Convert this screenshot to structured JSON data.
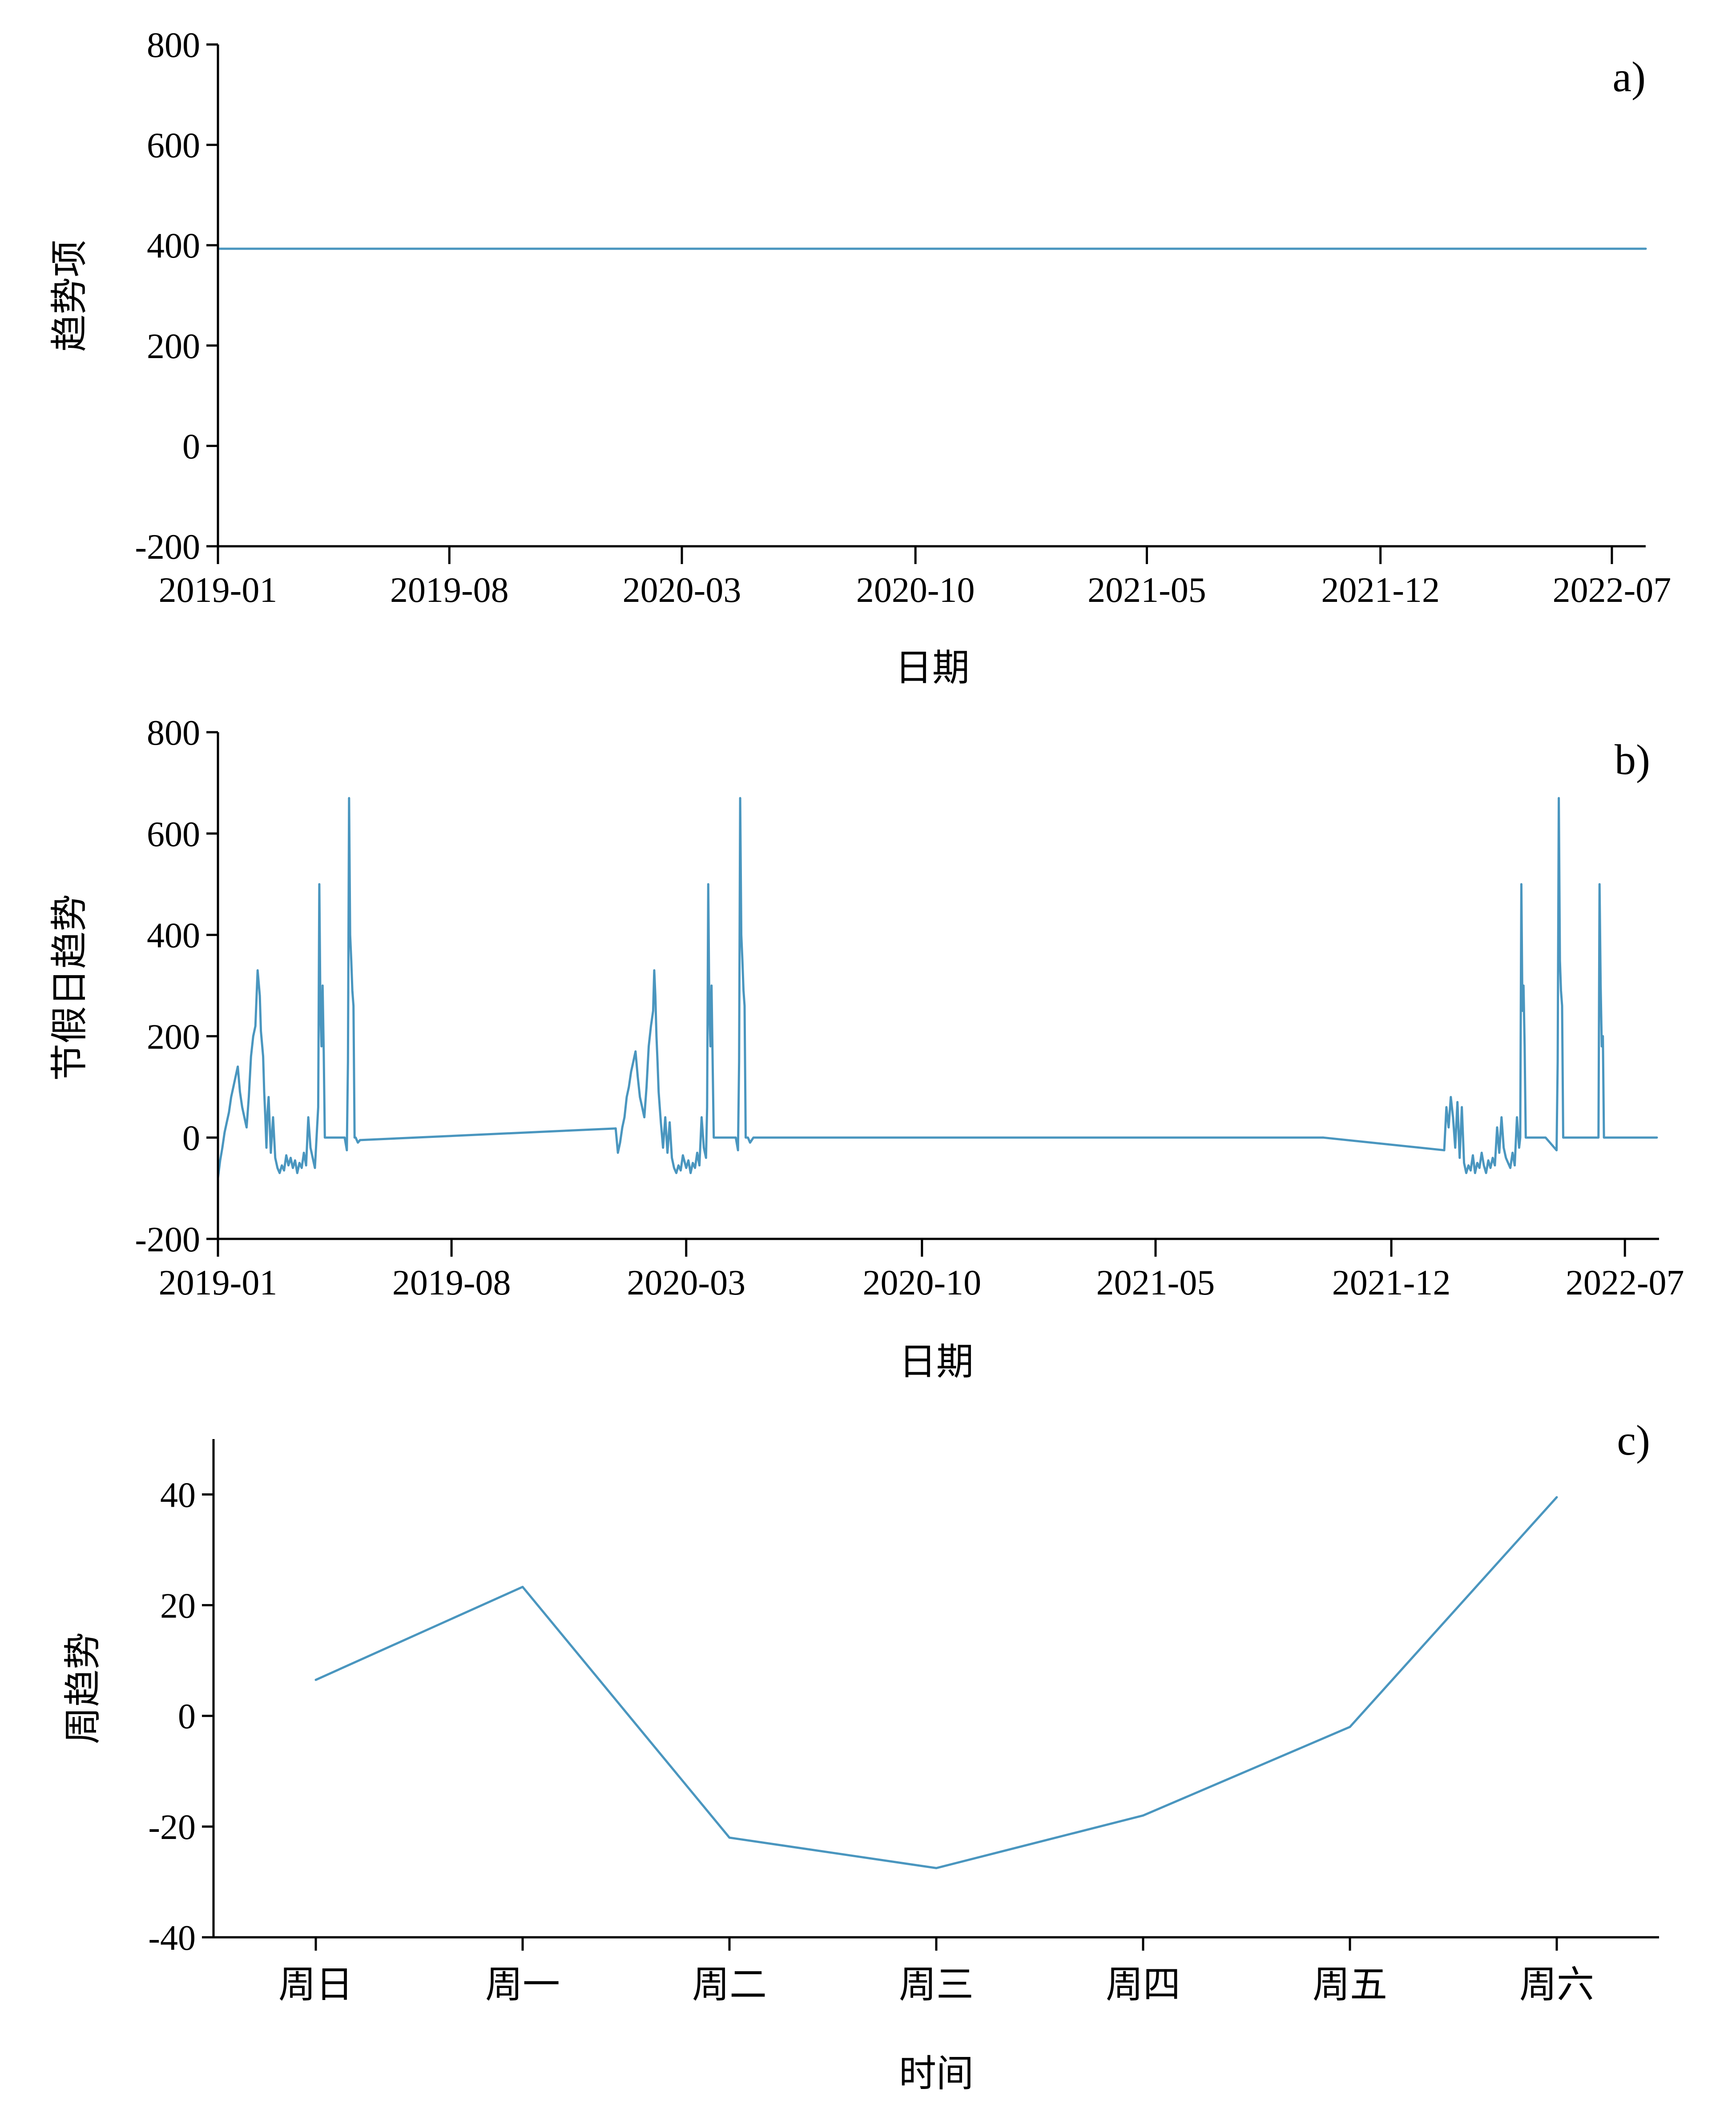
{
  "colors": {
    "series": "#4a96bf"
  },
  "chart_data": [
    {
      "id": "a",
      "type": "line",
      "panel_label": "a)",
      "xlabel": "日期",
      "ylabel": "趋势项",
      "x_axis": "date",
      "xlim": [
        "2019-01-01",
        "2022-08-01"
      ],
      "ylim": [
        -200,
        800
      ],
      "yticks": [
        -200,
        0,
        200,
        400,
        600,
        800
      ],
      "xticks": [
        "2019-01",
        "2019-08",
        "2020-03",
        "2020-10",
        "2021-05",
        "2021-12",
        "2022-07"
      ],
      "grid": false,
      "series": [
        {
          "x": [
            "2019-01-01",
            "2022-08-01"
          ],
          "y": [
            393,
            393
          ]
        }
      ]
    },
    {
      "id": "b",
      "type": "line",
      "panel_label": "b)",
      "xlabel": "日期",
      "ylabel": "节假日趋势",
      "x_axis": "date",
      "xlim": [
        "2019-01-01",
        "2022-08-01"
      ],
      "ylim": [
        -200,
        800
      ],
      "yticks": [
        -200,
        0,
        200,
        400,
        600,
        800
      ],
      "xticks": [
        "2019-01",
        "2019-08",
        "2020-03",
        "2020-10",
        "2021-05",
        "2021-12",
        "2022-07"
      ],
      "grid": false,
      "series": [
        {
          "x": [
            "2019-01-01",
            "2019-01-03",
            "2019-01-05",
            "2019-01-07",
            "2019-01-09",
            "2019-01-11",
            "2019-01-13",
            "2019-01-15",
            "2019-01-17",
            "2019-01-19",
            "2019-01-21",
            "2019-01-23",
            "2019-01-25",
            "2019-01-27",
            "2019-01-29",
            "2019-01-31",
            "2019-02-02",
            "2019-02-04",
            "2019-02-06",
            "2019-02-08",
            "2019-02-09",
            "2019-02-11",
            "2019-02-12",
            "2019-02-13",
            "2019-02-14",
            "2019-02-15",
            "2019-02-16",
            "2019-02-18",
            "2019-02-20",
            "2019-02-22",
            "2019-02-24",
            "2019-02-26",
            "2019-02-28",
            "2019-03-02",
            "2019-03-04",
            "2019-03-06",
            "2019-03-08",
            "2019-03-10",
            "2019-03-12",
            "2019-03-14",
            "2019-03-16",
            "2019-03-18",
            "2019-03-20",
            "2019-03-22",
            "2019-03-24",
            "2019-03-26",
            "2019-03-28",
            "2019-03-30",
            "2019-04-02",
            "2019-04-03",
            "2019-04-04",
            "2019-04-05",
            "2019-04-06",
            "2019-04-07",
            "2019-04-08",
            "2019-04-10",
            "2019-04-14",
            "2019-04-20",
            "2019-04-26",
            "2019-04-28",
            "2019-04-29",
            "2019-04-30",
            "2019-05-01",
            "2019-05-02",
            "2019-05-03",
            "2019-05-04",
            "2019-05-05",
            "2019-05-06",
            "2019-05-08",
            "2019-05-10"
          ],
          "y": [
            -80,
            -45,
            -20,
            10,
            30,
            50,
            80,
            100,
            120,
            140,
            90,
            60,
            40,
            20,
            80,
            160,
            200,
            220,
            330,
            280,
            210,
            160,
            90,
            40,
            -20,
            50,
            80,
            -30,
            40,
            -40,
            -60,
            -70,
            -55,
            -65,
            -35,
            -55,
            -40,
            -60,
            -45,
            -70,
            -50,
            -60,
            -30,
            -55,
            40,
            -20,
            -40,
            -60,
            60,
            500,
            250,
            180,
            300,
            170,
            0,
            0,
            0,
            0,
            0,
            -25,
            150,
            670,
            400,
            350,
            290,
            260,
            0,
            0,
            -10,
            -5
          ]
        },
        {
          "x": [
            "2019-05-10",
            "2019-12-28"
          ],
          "y": [
            -5,
            18
          ]
        },
        {
          "x": [
            "2019-12-28",
            "2019-12-30",
            "2020-01-01",
            "2020-01-03",
            "2020-01-05",
            "2020-01-07",
            "2020-01-09",
            "2020-01-11",
            "2020-01-13",
            "2020-01-15",
            "2020-01-17",
            "2020-01-19",
            "2020-01-21",
            "2020-01-23",
            "2020-01-25",
            "2020-01-27",
            "2020-01-29",
            "2020-01-31",
            "2020-02-01",
            "2020-02-02",
            "2020-02-03",
            "2020-02-04",
            "2020-02-05",
            "2020-02-07",
            "2020-02-09",
            "2020-02-11",
            "2020-02-13",
            "2020-02-15",
            "2020-02-17",
            "2020-02-19",
            "2020-02-21",
            "2020-02-23",
            "2020-02-25",
            "2020-02-27",
            "2020-03-01",
            "2020-03-03",
            "2020-03-05",
            "2020-03-07",
            "2020-03-09",
            "2020-03-11",
            "2020-03-13",
            "2020-03-15",
            "2020-03-17",
            "2020-03-19",
            "2020-03-20",
            "2020-03-21",
            "2020-03-22",
            "2020-03-23",
            "2020-03-24",
            "2020-03-26",
            "2020-03-30",
            "2020-04-05",
            "2020-04-15",
            "2020-04-17",
            "2020-04-18",
            "2020-04-19",
            "2020-04-20",
            "2020-04-21",
            "2020-04-22",
            "2020-04-23",
            "2020-04-24",
            "2020-04-26",
            "2020-04-28",
            "2020-05-01",
            "2021-09-30"
          ],
          "y": [
            18,
            -30,
            -10,
            20,
            40,
            80,
            100,
            130,
            150,
            170,
            120,
            80,
            60,
            40,
            100,
            180,
            220,
            250,
            330,
            280,
            200,
            150,
            90,
            30,
            -20,
            40,
            -30,
            30,
            -40,
            -60,
            -70,
            -55,
            -65,
            -35,
            -60,
            -45,
            -70,
            -50,
            -60,
            -30,
            -55,
            40,
            -20,
            -40,
            60,
            500,
            250,
            180,
            300,
            0,
            0,
            0,
            0,
            -25,
            150,
            670,
            400,
            350,
            290,
            260,
            0,
            0,
            -10,
            0,
            0
          ]
        },
        {
          "x": [
            "2021-09-30",
            "2022-01-18"
          ],
          "y": [
            0,
            -25
          ]
        },
        {
          "x": [
            "2022-01-18",
            "2022-01-20",
            "2022-01-22",
            "2022-01-24",
            "2022-01-26",
            "2022-01-28",
            "2022-01-30",
            "2022-02-01",
            "2022-02-03",
            "2022-02-05",
            "2022-02-07",
            "2022-02-09",
            "2022-02-11",
            "2022-02-13",
            "2022-02-15",
            "2022-02-17",
            "2022-02-19",
            "2022-02-21",
            "2022-02-23",
            "2022-02-25",
            "2022-02-27",
            "2022-03-01",
            "2022-03-03",
            "2022-03-05",
            "2022-03-07",
            "2022-03-09",
            "2022-03-11",
            "2022-03-13",
            "2022-03-15",
            "2022-03-17",
            "2022-03-19",
            "2022-03-21",
            "2022-03-23",
            "2022-03-25",
            "2022-03-27",
            "2022-03-28",
            "2022-03-29",
            "2022-03-30",
            "2022-03-31",
            "2022-04-01",
            "2022-04-02",
            "2022-04-04",
            "2022-04-10",
            "2022-04-20",
            "2022-04-30",
            "2022-05-01",
            "2022-05-02",
            "2022-05-03",
            "2022-05-04",
            "2022-05-05",
            "2022-05-06",
            "2022-05-07",
            "2022-05-08",
            "2022-05-10",
            "2022-05-20",
            "2022-06-01",
            "2022-06-05",
            "2022-06-07",
            "2022-06-08",
            "2022-06-09",
            "2022-06-10",
            "2022-06-11",
            "2022-06-12",
            "2022-06-13",
            "2022-06-14",
            "2022-06-20",
            "2022-06-30",
            "2022-07-10",
            "2022-07-20",
            "2022-07-30"
          ],
          "y": [
            -25,
            60,
            20,
            80,
            40,
            -20,
            70,
            -40,
            60,
            -50,
            -70,
            -55,
            -65,
            -35,
            -70,
            -50,
            -60,
            -30,
            -55,
            -70,
            -45,
            -60,
            -40,
            -55,
            20,
            -30,
            40,
            -20,
            -40,
            -50,
            -60,
            -30,
            -55,
            40,
            -20,
            0,
            500,
            250,
            300,
            180,
            0,
            0,
            0,
            0,
            -25,
            150,
            670,
            350,
            290,
            260,
            0,
            0,
            0,
            0,
            0,
            0,
            0,
            0,
            500,
            300,
            180,
            200,
            0,
            0,
            0,
            0,
            0,
            0,
            0,
            0
          ]
        }
      ]
    },
    {
      "id": "c",
      "type": "line",
      "panel_label": "c)",
      "xlabel": "时间",
      "ylabel": "周趋势",
      "categories": [
        "周日",
        "周一",
        "周二",
        "周三",
        "周四",
        "周五",
        "周六"
      ],
      "ylim": [
        -40,
        50
      ],
      "yticks": [
        -40,
        -20,
        0,
        20,
        40
      ],
      "grid": false,
      "series": [
        {
          "values": [
            6.5,
            23.3,
            -22.0,
            -27.5,
            -18.0,
            -2.0,
            39.5
          ]
        }
      ]
    }
  ]
}
